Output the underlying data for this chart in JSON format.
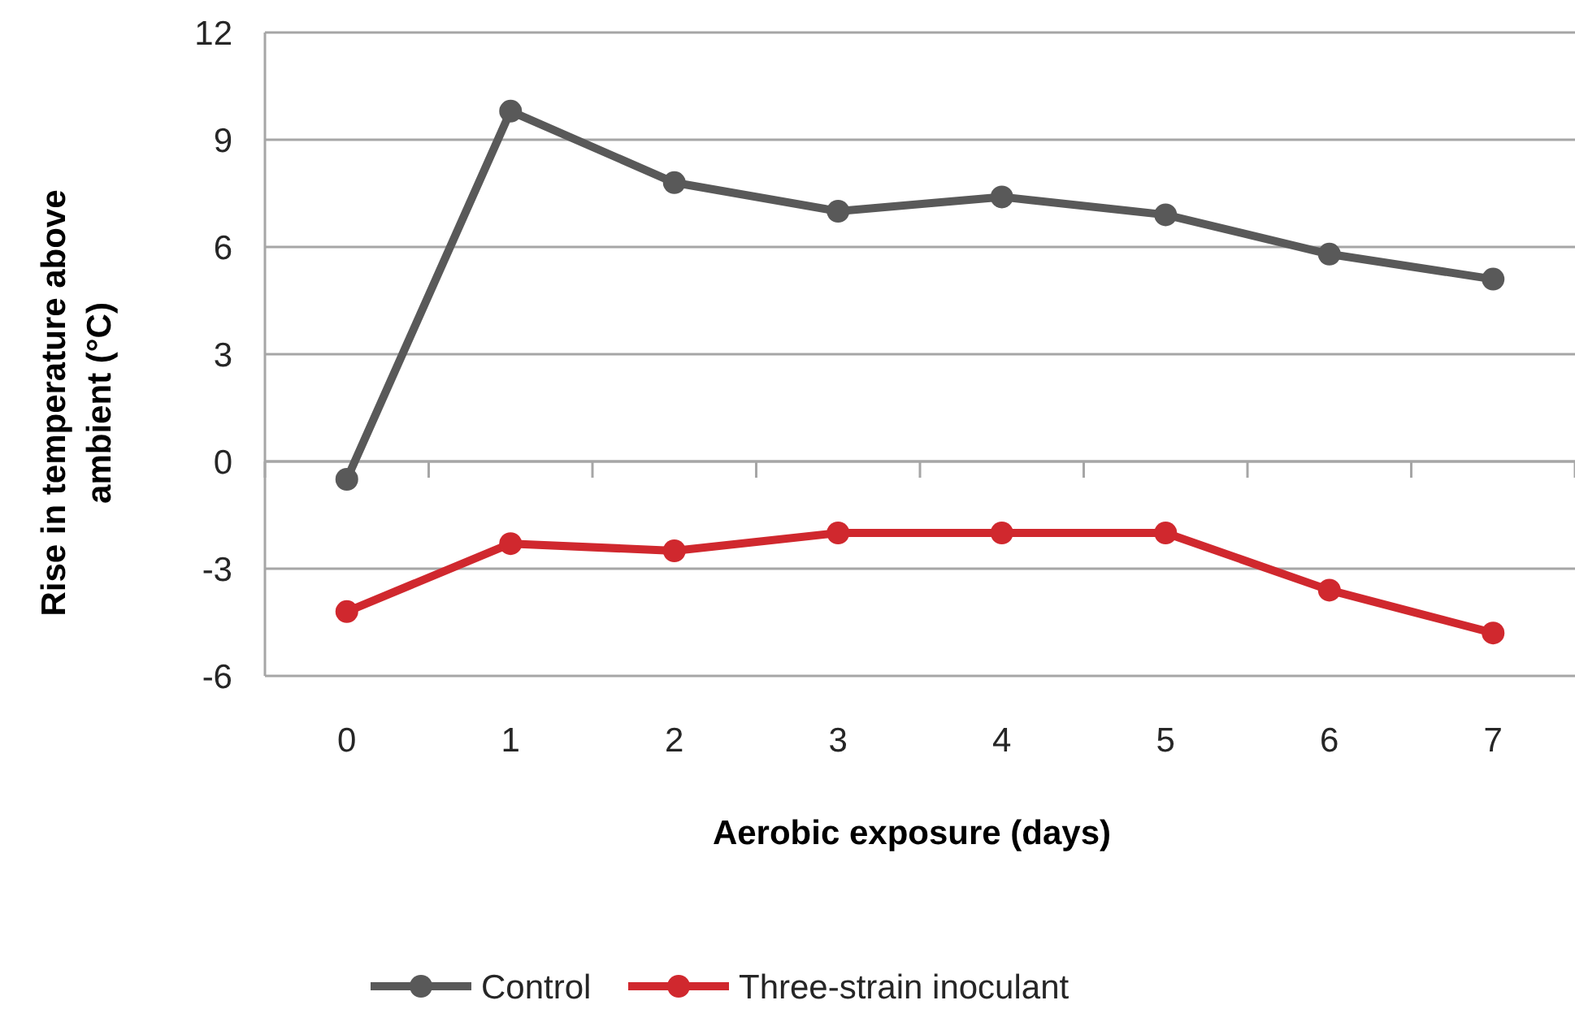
{
  "chart_data": {
    "type": "line",
    "xlabel": "Aerobic exposure (days)",
    "ylabel": "Rise in temperature above ambient (°C)",
    "categories": [
      "0",
      "1",
      "2",
      "3",
      "4",
      "5",
      "6",
      "7"
    ],
    "ylim": [
      -6,
      12
    ],
    "yticks": [
      12,
      9,
      6,
      3,
      0,
      -3,
      -6
    ],
    "grid": "y",
    "legend": "bottom",
    "marker": "circle",
    "line_style": "solid",
    "series": [
      {
        "name": "Control",
        "color": "#595959",
        "values": [
          -0.5,
          9.8,
          7.8,
          7.0,
          7.4,
          6.9,
          5.8,
          5.1
        ]
      },
      {
        "name": "Three-strain inoculant",
        "color": "#d0282e",
        "values": [
          -4.2,
          -2.3,
          -2.5,
          -2.0,
          -2.0,
          -2.0,
          -3.6,
          -4.8
        ]
      }
    ]
  }
}
